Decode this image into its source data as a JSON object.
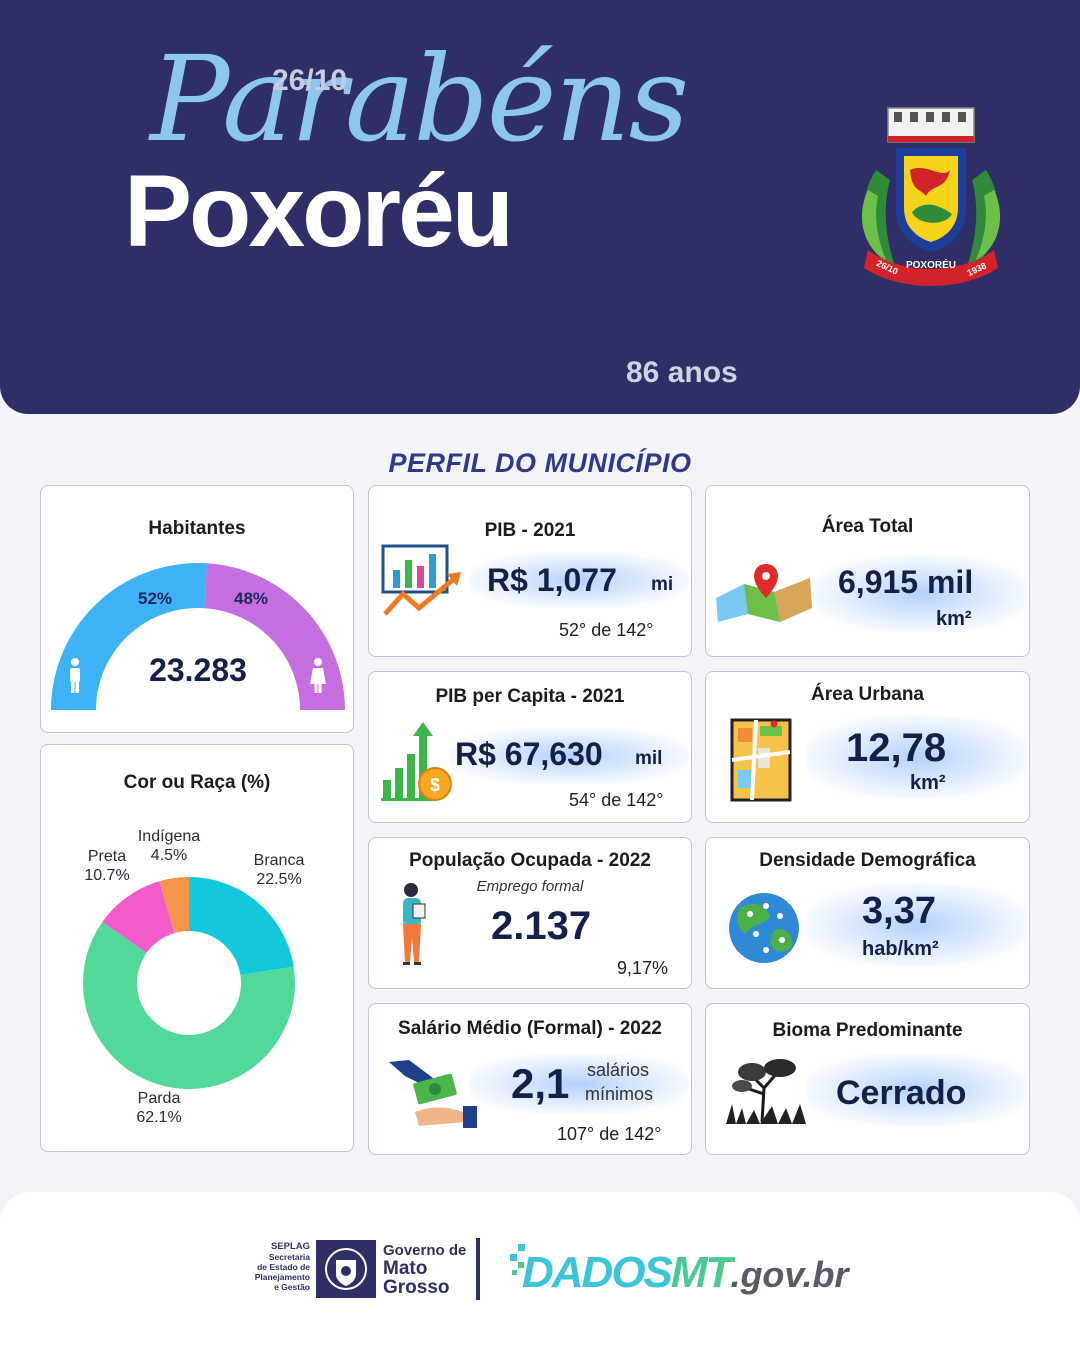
{
  "header": {
    "date": "26/10",
    "script_title": "Parabéns",
    "city": "Poxoréu",
    "years": "86 anos",
    "coat_of_arms": {
      "name": "POXORÉU",
      "left_date": "26/10",
      "right_date": "1938"
    }
  },
  "section_title": "PERFIL DO MUNICÍPIO",
  "habitantes": {
    "title": "Habitantes",
    "value": "23.283",
    "male_pct": "52%",
    "female_pct": "48%",
    "male_share": 0.52,
    "colors": {
      "male": "#3db2f5",
      "female": "#c46ee0"
    }
  },
  "raca": {
    "title": "Cor ou Raça (%)",
    "chart_data": {
      "type": "pie",
      "title": "Cor ou Raça (%)",
      "categories": [
        "Branca",
        "Parda",
        "Preta",
        "Indígena"
      ],
      "values": [
        22.5,
        62.1,
        10.7,
        4.5
      ],
      "labels": [
        "22.5%",
        "62.1%",
        "10.7%",
        "4.5%"
      ],
      "colors": [
        "#13c8dc",
        "#52d99a",
        "#f25cc9",
        "#f7944b"
      ]
    }
  },
  "pib": {
    "title": "PIB - 2021",
    "value": "R$ 1,077",
    "unit": "mi",
    "rank": "52°  de 142°"
  },
  "pib_per_capita": {
    "title": "PIB per Capita - 2021",
    "value": "R$ 67,630",
    "unit": "mil",
    "rank": "54° de 142°"
  },
  "populacao": {
    "title": "População  Ocupada - 2022",
    "subtitle": "Emprego formal",
    "value": "2.137",
    "rank": "9,17%"
  },
  "salario": {
    "title": "Salário Médio (Formal) - 2022",
    "value": "2,1",
    "unit_line1": "salários",
    "unit_line2": "mínimos",
    "rank": "107° de 142°"
  },
  "area_total": {
    "title": "Área Total",
    "value": "6,915 mil",
    "unit": "km²"
  },
  "area_urbana": {
    "title": "Área Urbana",
    "value": "12,78",
    "unit": "km²"
  },
  "densidade": {
    "title": "Densidade Demográfica",
    "value": "3,37",
    "unit": "hab/km²"
  },
  "bioma": {
    "title": "Bioma Predominante",
    "value": "Cerrado"
  },
  "footer": {
    "seplag_lines": [
      "SEPLAG",
      "Secretaria",
      "de Estado de",
      "Planejamento",
      "e Gestão"
    ],
    "gov_lines": [
      "Governo de",
      "Mato",
      "Grosso"
    ],
    "dados_1": "DADOS",
    "dados_2": "MT",
    "dados_3": ".gov.br"
  }
}
